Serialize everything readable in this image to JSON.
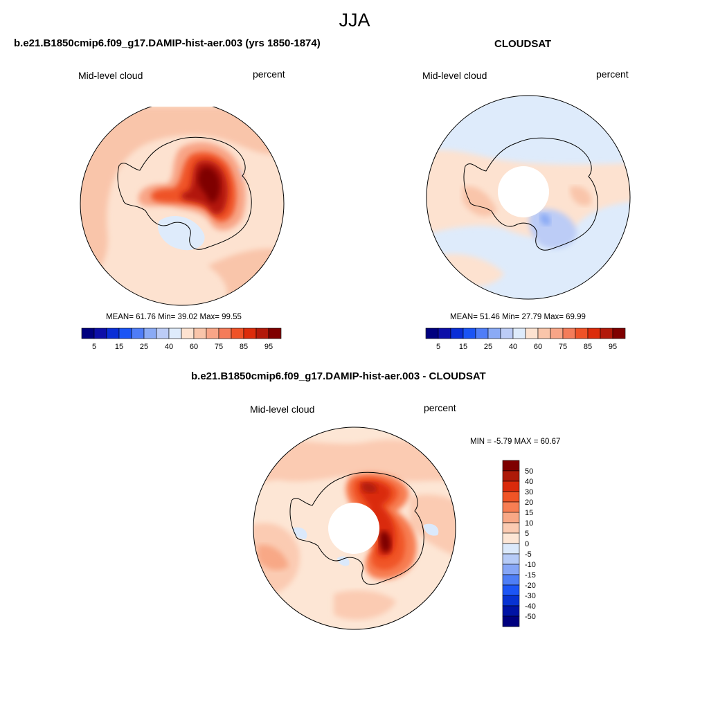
{
  "page": {
    "season": "JJA"
  },
  "palettes": {
    "abs": [
      "#00007f",
      "#0d0fa8",
      "#0a2ed6",
      "#1a54f5",
      "#4f7df7",
      "#8aaaf5",
      "#bcccf6",
      "#deebfb",
      "#fde2d0",
      "#f9c5aa",
      "#f8a587",
      "#f47c5a",
      "#ef5227",
      "#dc2c0b",
      "#b2190a",
      "#7f0000"
    ],
    "diff": [
      "#00007f",
      "#0013a5",
      "#0732d2",
      "#1c55f5",
      "#4e7ef6",
      "#86a6f6",
      "#b6cbf7",
      "#dbe9fb",
      "#fde6d5",
      "#fbcbb2",
      "#f8a886",
      "#f77e53",
      "#f05426",
      "#da2a0b",
      "#ad1a09",
      "#7e0000"
    ]
  },
  "panels": [
    {
      "title": "b.e21.B1850cmip6.f09_g17.DAMIP-hist-aer.003 (yrs 1850-1874)",
      "left_label": "Mid-level cloud",
      "right_label": "percent",
      "stats": "MEAN=  61.76  Min=  39.02  Max=  99.55",
      "hole": false,
      "colorbar_labels": [
        "5",
        "15",
        "25",
        "40",
        "60",
        "75",
        "85",
        "95"
      ]
    },
    {
      "title": "CLOUDSAT",
      "left_label": "Mid-level cloud",
      "right_label": "percent",
      "stats": "MEAN=  51.46  Min=  27.79  Max=  69.99",
      "hole": true,
      "colorbar_labels": [
        "5",
        "15",
        "25",
        "40",
        "60",
        "75",
        "85",
        "95"
      ]
    }
  ],
  "diff_panel": {
    "title": "b.e21.B1850cmip6.f09_g17.DAMIP-hist-aer.003 - CLOUDSAT",
    "left_label": "Mid-level cloud",
    "right_label": "percent",
    "stats": "MIN =  -5.79 MAX =  60.67",
    "hole": true,
    "colorbar_labels": [
      "50",
      "40",
      "30",
      "20",
      "15",
      "10",
      "5",
      "0",
      "-5",
      "-10",
      "-15",
      "-20",
      "-30",
      "-40",
      "-50"
    ]
  }
}
